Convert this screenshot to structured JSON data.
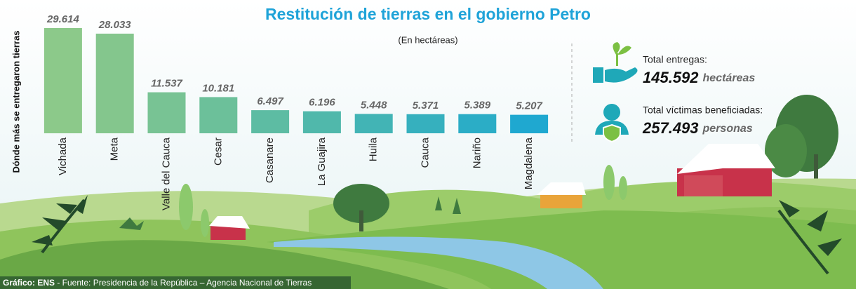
{
  "chart_data": {
    "type": "bar",
    "title": "Restitución de tierras en el gobierno Petro",
    "subtitle": "(En hectáreas)",
    "y_label": "Dónde más se entregaron tierras",
    "categories": [
      "Vichada",
      "Meta",
      "Valle del Cauca",
      "Cesar",
      "Casanare",
      "La Guajira",
      "Huila",
      "Cauca",
      "Nariño",
      "Magdalena"
    ],
    "values": [
      29614,
      28033,
      11537,
      10181,
      6497,
      6196,
      5448,
      5371,
      5389,
      5207
    ],
    "value_labels": [
      "29.614",
      "28.033",
      "11.537",
      "10.181",
      "6.497",
      "6.196",
      "5.448",
      "5.371",
      "5.389",
      "5.207"
    ],
    "colors": [
      "#8cc98a",
      "#84c68d",
      "#78c394",
      "#6cc09a",
      "#5dbca3",
      "#50b8ab",
      "#42b4b5",
      "#36b0be",
      "#2badc6",
      "#1fa8d0"
    ],
    "ylim": [
      0,
      30000
    ]
  },
  "stats": [
    {
      "label": "Total entregas:",
      "value": "145.592",
      "unit": "hectáreas"
    },
    {
      "label": "Total víctimas beneficiadas:",
      "value": "257.493",
      "unit": "personas"
    }
  ],
  "footer": {
    "credit": "Gráfico: ENS",
    "source": " - Fuente: Presidencia de la República – Agencia Nacional de Tierras"
  }
}
